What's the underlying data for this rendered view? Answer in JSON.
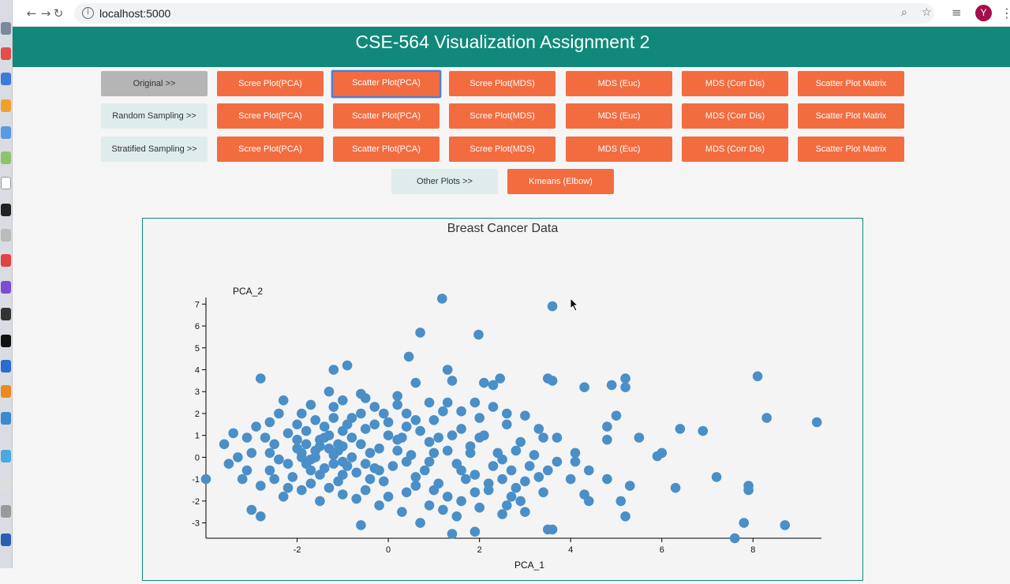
{
  "browser": {
    "url": "localhost:5000",
    "profile_initial": "Y"
  },
  "header": {
    "title": "CSE-564 Visualization Assignment 2"
  },
  "rows": [
    {
      "label": "Original >>",
      "buttons": [
        "Scree Plot(PCA)",
        "Scatter Plot(PCA)",
        "Scree Plot(MDS)",
        "MDS (Euc)",
        "MDS (Corr Dis)",
        "Scatter Plot Matrix"
      ]
    },
    {
      "label": "Random Sampling >>",
      "buttons": [
        "Scree Plot(PCA)",
        "Scatter Plot(PCA)",
        "Scree Plot(MDS)",
        "MDS (Euc)",
        "MDS (Corr Dis)",
        "Scatter Plot Matrix"
      ]
    },
    {
      "label": "Stratified Sampling >>",
      "buttons": [
        "Scree Plot(PCA)",
        "Scatter Plot(PCA)",
        "Scree Plot(MDS)",
        "MDS (Euc)",
        "MDS (Corr Dis)",
        "Scatter Plot Matrix"
      ]
    }
  ],
  "other": {
    "label": "Other Plots >>",
    "button": "Kmeans (Elbow)"
  },
  "colors": {
    "header": "#10897b",
    "button": "#f26c40",
    "point": "#4a8fc8"
  },
  "chart_data": {
    "type": "scatter",
    "title": "Breast Cancer Data",
    "xlabel": "PCA_1",
    "ylabel": "PCA_2",
    "xlim": [
      -4,
      9.5
    ],
    "ylim": [
      -3.7,
      7.3
    ],
    "xticks": [
      -2,
      0,
      2,
      4,
      6,
      8
    ],
    "yticks": [
      -3,
      -2,
      -1,
      0,
      1,
      2,
      3,
      4,
      5,
      6,
      7
    ],
    "points": [
      [
        1.18,
        7.25
      ],
      [
        3.6,
        6.9
      ],
      [
        0.7,
        5.7
      ],
      [
        1.98,
        5.6
      ],
      [
        0.45,
        4.6
      ],
      [
        -0.9,
        4.2
      ],
      [
        -1.2,
        4.0
      ],
      [
        1.3,
        4.0
      ],
      [
        3.5,
        3.6
      ],
      [
        -2.8,
        3.6
      ],
      [
        8.1,
        3.7
      ],
      [
        3.6,
        3.5
      ],
      [
        4.3,
        3.2
      ],
      [
        4.9,
        3.3
      ],
      [
        5.2,
        3.6
      ],
      [
        5.2,
        3.2
      ],
      [
        2.1,
        3.4
      ],
      [
        2.3,
        3.3
      ],
      [
        2.45,
        3.6
      ],
      [
        1.4,
        3.5
      ],
      [
        0.6,
        3.4
      ],
      [
        -0.6,
        2.9
      ],
      [
        -1.3,
        3.0
      ],
      [
        -2.3,
        2.6
      ],
      [
        0.2,
        2.8
      ],
      [
        1.3,
        2.5
      ],
      [
        8.3,
        1.8
      ],
      [
        9.4,
        1.6
      ],
      [
        5.0,
        1.9
      ],
      [
        6.4,
        1.3
      ],
      [
        6.9,
        1.2
      ],
      [
        5.5,
        0.9
      ],
      [
        4.8,
        1.4
      ],
      [
        4.8,
        0.8
      ],
      [
        3.4,
        0.9
      ],
      [
        3.7,
        0.9
      ],
      [
        6.0,
        0.2
      ],
      [
        5.9,
        0.05
      ],
      [
        7.2,
        -0.9
      ],
      [
        7.9,
        -1.3
      ],
      [
        7.9,
        -1.5
      ],
      [
        6.3,
        -1.4
      ],
      [
        5.3,
        -1.3
      ],
      [
        5.1,
        -2.0
      ],
      [
        5.2,
        -2.7
      ],
      [
        4.4,
        -2.0
      ],
      [
        4.3,
        -1.7
      ],
      [
        4.8,
        -1.0
      ],
      [
        7.8,
        -3.0
      ],
      [
        8.7,
        -3.1
      ],
      [
        7.6,
        -3.7
      ],
      [
        3.6,
        -3.3
      ],
      [
        3.5,
        -3.3
      ],
      [
        1.4,
        -3.5
      ],
      [
        1.9,
        -3.4
      ],
      [
        -0.6,
        -3.1
      ],
      [
        -2.8,
        -2.7
      ],
      [
        -3.4,
        1.1
      ],
      [
        -3.6,
        0.6
      ],
      [
        -3.5,
        -0.3
      ],
      [
        -3.2,
        -1.0
      ],
      [
        -4.0,
        -1.0
      ],
      [
        -3.0,
        -2.4
      ],
      [
        0.7,
        -3.0
      ],
      [
        2.6,
        -2.2
      ],
      [
        2.9,
        -2.0
      ],
      [
        4.1,
        0.2
      ],
      [
        4.4,
        -0.6
      ],
      [
        4.1,
        -0.2
      ],
      [
        3.7,
        -0.2
      ],
      [
        4.0,
        -1.0
      ],
      [
        -2.0,
        1.5
      ],
      [
        -1.8,
        1.2
      ],
      [
        -1.5,
        0.8
      ],
      [
        -1.3,
        1.0
      ],
      [
        -1.1,
        0.6
      ],
      [
        -1.6,
        0.3
      ],
      [
        -1.9,
        0.0
      ],
      [
        -2.2,
        -0.3
      ],
      [
        -1.4,
        -0.5
      ],
      [
        -1.0,
        -0.2
      ],
      [
        -0.8,
        0.9
      ],
      [
        -0.5,
        1.3
      ],
      [
        -0.2,
        0.4
      ],
      [
        0.1,
        -0.4
      ],
      [
        -0.4,
        -1.0
      ],
      [
        -1.7,
        -1.2
      ],
      [
        -2.1,
        -0.9
      ],
      [
        -2.5,
        0.6
      ],
      [
        -2.6,
        -0.6
      ],
      [
        -1.2,
        1.8
      ],
      [
        -0.9,
        1.5
      ],
      [
        -0.6,
        2.0
      ],
      [
        0.0,
        1.6
      ],
      [
        0.3,
        0.9
      ],
      [
        0.5,
        0.1
      ],
      [
        0.8,
        -0.6
      ],
      [
        1.1,
        -1.2
      ],
      [
        1.5,
        -0.3
      ],
      [
        1.8,
        0.5
      ],
      [
        2.1,
        1.0
      ],
      [
        2.4,
        0.2
      ],
      [
        2.7,
        -0.6
      ],
      [
        3.0,
        -1.1
      ],
      [
        2.2,
        -1.5
      ],
      [
        1.6,
        -2.0
      ],
      [
        1.2,
        -2.4
      ],
      [
        0.4,
        -1.6
      ],
      [
        -0.2,
        -2.2
      ],
      [
        -1.0,
        -1.7
      ],
      [
        -1.5,
        -2.0
      ],
      [
        -2.3,
        -1.8
      ],
      [
        -2.8,
        -1.3
      ],
      [
        -3.0,
        0.2
      ],
      [
        -2.9,
        1.4
      ],
      [
        -2.4,
        2.0
      ],
      [
        -1.7,
        2.4
      ],
      [
        -1.0,
        2.6
      ],
      [
        -0.3,
        2.3
      ],
      [
        0.4,
        2.0
      ],
      [
        1.0,
        1.7
      ],
      [
        1.6,
        1.3
      ],
      [
        2.0,
        1.8
      ],
      [
        2.6,
        1.5
      ],
      [
        2.9,
        0.7
      ],
      [
        3.2,
        0.1
      ],
      [
        3.5,
        -0.6
      ],
      [
        2.5,
        -1.0
      ],
      [
        1.9,
        -0.8
      ],
      [
        1.3,
        0.3
      ],
      [
        0.9,
        0.7
      ],
      [
        0.2,
        0.8
      ],
      [
        -0.4,
        0.2
      ],
      [
        -0.9,
        -0.4
      ],
      [
        -1.5,
        -0.8
      ],
      [
        -2.0,
        0.4
      ],
      [
        -1.2,
        0.1
      ],
      [
        -0.7,
        -0.7
      ],
      [
        -0.1,
        -1.1
      ],
      [
        0.6,
        -0.9
      ],
      [
        1.0,
        -1.5
      ],
      [
        1.7,
        -1.0
      ],
      [
        2.3,
        -0.4
      ],
      [
        2.8,
        0.3
      ],
      [
        2.0,
        0.9
      ],
      [
        1.4,
        1.0
      ],
      [
        0.7,
        1.2
      ],
      [
        0.0,
        1.0
      ],
      [
        -0.6,
        0.6
      ],
      [
        -1.3,
        0.4
      ],
      [
        -1.8,
        -0.3
      ],
      [
        -2.4,
        -0.1
      ],
      [
        -2.7,
        0.9
      ],
      [
        -2.2,
        1.1
      ],
      [
        -1.6,
        1.7
      ],
      [
        -1.0,
        1.2
      ],
      [
        -0.3,
        1.5
      ],
      [
        0.4,
        1.4
      ],
      [
        1.1,
        0.9
      ],
      [
        1.8,
        0.2
      ],
      [
        2.5,
        -0.1
      ],
      [
        3.1,
        -0.4
      ],
      [
        3.4,
        -1.6
      ],
      [
        2.7,
        -1.8
      ],
      [
        2.0,
        -2.3
      ],
      [
        1.5,
        -2.7
      ],
      [
        0.9,
        -2.2
      ],
      [
        0.3,
        -2.5
      ],
      [
        -0.5,
        -1.5
      ],
      [
        -1.1,
        -1.1
      ],
      [
        -1.9,
        -1.5
      ],
      [
        -2.5,
        -1.0
      ],
      [
        -3.1,
        -0.6
      ],
      [
        -3.3,
        0.0
      ],
      [
        -2.6,
        0.2
      ],
      [
        -2.0,
        0.8
      ],
      [
        -1.4,
        1.4
      ],
      [
        -0.8,
        1.8
      ],
      [
        -0.1,
        2.0
      ],
      [
        0.6,
        1.7
      ],
      [
        1.2,
        2.1
      ],
      [
        1.9,
        2.5
      ],
      [
        2.6,
        2.0
      ],
      [
        3.3,
        1.3
      ],
      [
        3.0,
        1.9
      ],
      [
        2.3,
        2.3
      ],
      [
        1.6,
        2.1
      ],
      [
        0.9,
        2.5
      ],
      [
        0.2,
        2.4
      ],
      [
        -0.5,
        2.7
      ],
      [
        -1.2,
        2.3
      ],
      [
        -1.9,
        2.0
      ],
      [
        -2.6,
        1.6
      ],
      [
        -3.1,
        0.9
      ],
      [
        -0.2,
        -0.6
      ],
      [
        0.4,
        -0.2
      ],
      [
        1.0,
        0.2
      ],
      [
        1.6,
        -0.6
      ],
      [
        2.2,
        -1.2
      ],
      [
        2.8,
        -1.4
      ],
      [
        3.3,
        -0.9
      ],
      [
        -1.6,
        0.0
      ],
      [
        -1.0,
        -0.8
      ],
      [
        -0.5,
        -0.3
      ],
      [
        0.2,
        0.3
      ],
      [
        0.9,
        -0.2
      ],
      [
        -2.2,
        -1.4
      ],
      [
        -1.7,
        -0.6
      ],
      [
        -1.3,
        -1.4
      ],
      [
        -0.7,
        -1.9
      ],
      [
        0.0,
        -1.8
      ],
      [
        0.6,
        -1.3
      ],
      [
        1.3,
        -1.8
      ],
      [
        1.9,
        -1.6
      ],
      [
        2.5,
        -2.6
      ],
      [
        3.0,
        -2.5
      ],
      [
        -1.8,
        0.6
      ],
      [
        -1.4,
        0.9
      ],
      [
        -1.1,
        0.3
      ],
      [
        -0.8,
        0.0
      ],
      [
        -0.3,
        -0.5
      ],
      [
        -1.9,
        0.2
      ],
      [
        -1.5,
        0.5
      ],
      [
        -1.2,
        -0.3
      ],
      [
        -1.7,
        -0.1
      ],
      [
        -1.0,
        0.5
      ]
    ]
  }
}
